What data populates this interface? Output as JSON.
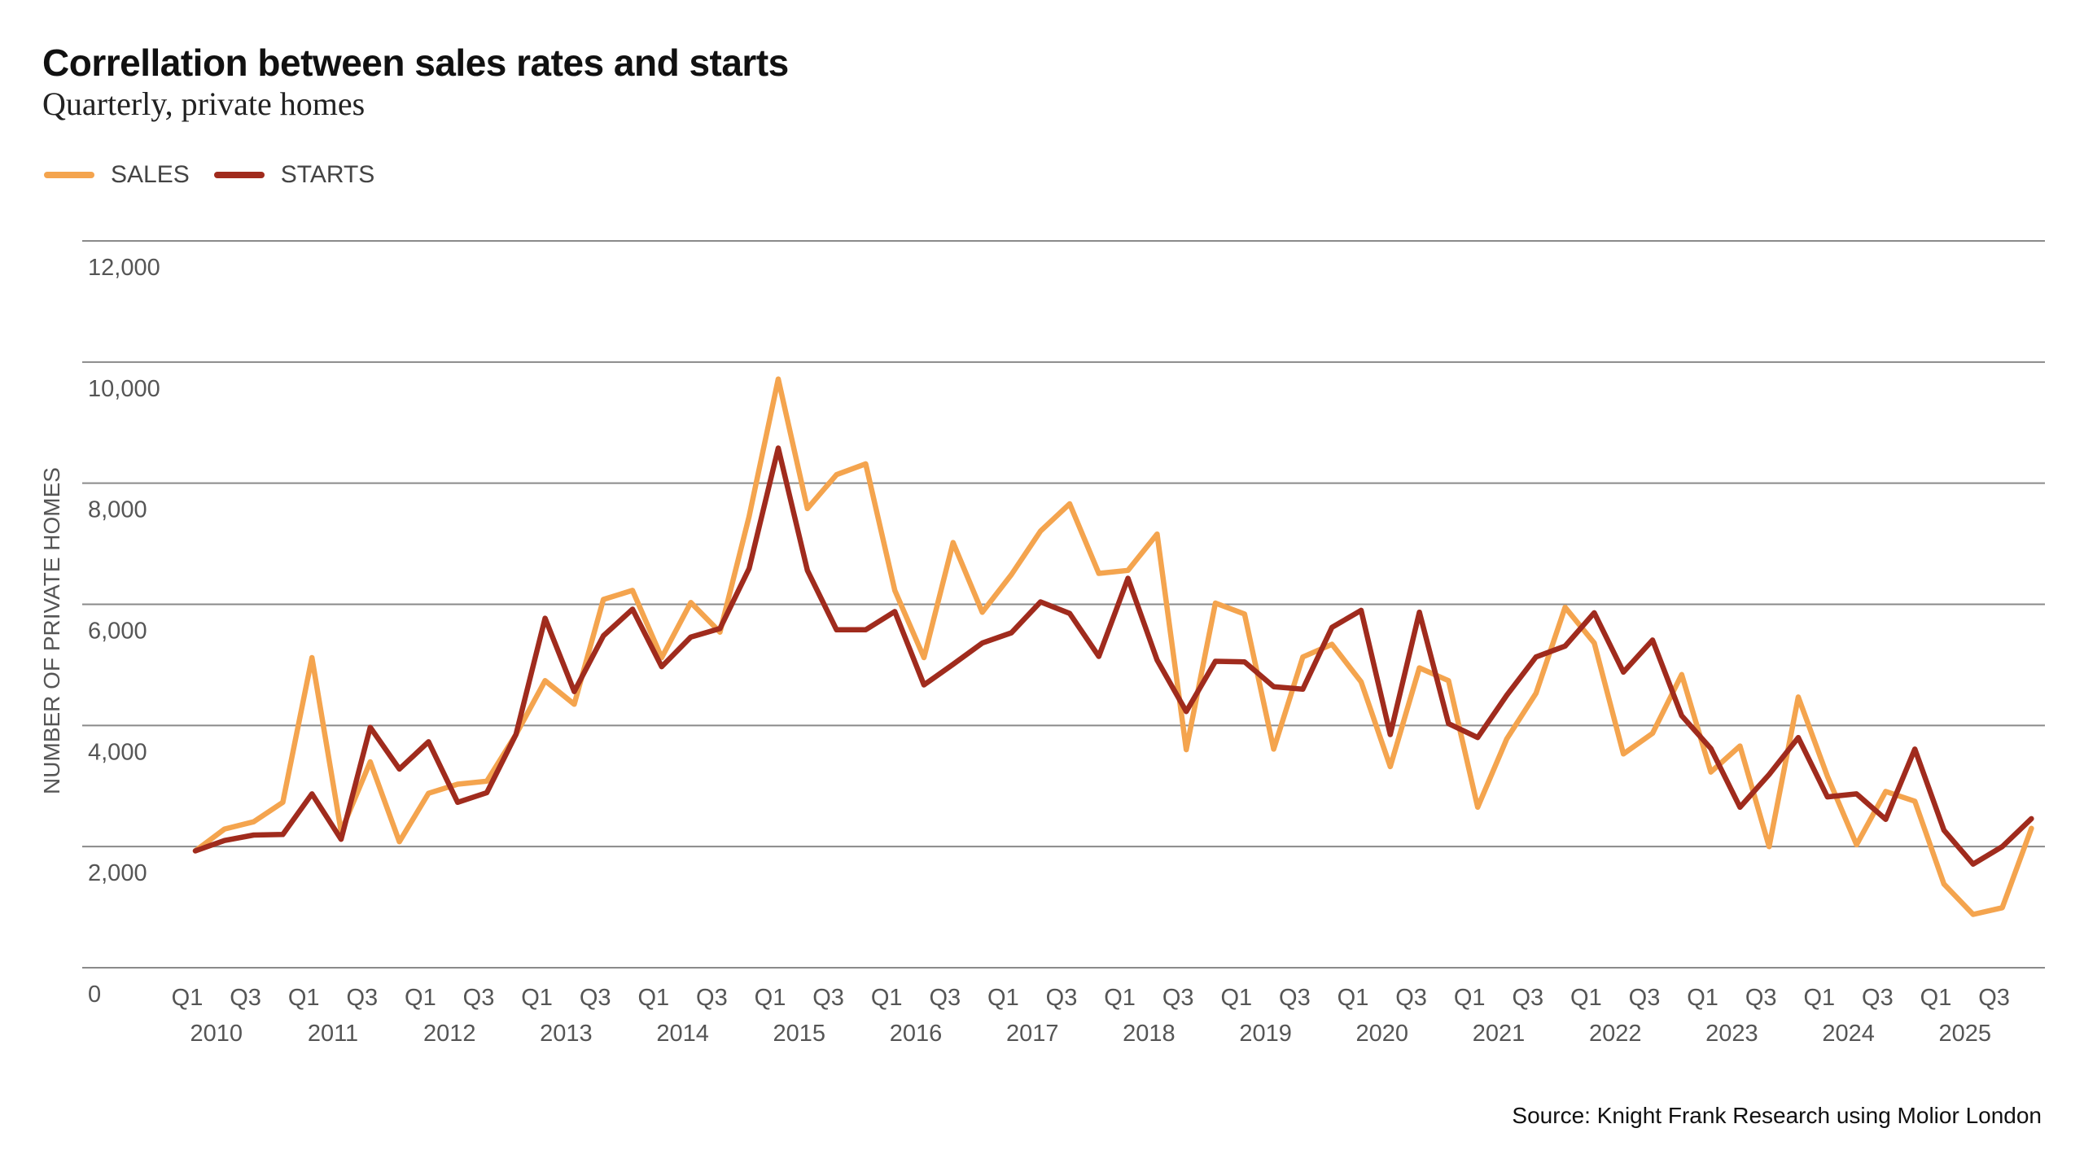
{
  "header": {
    "title": "Correllation between sales rates and starts",
    "subtitle": "Quarterly, private homes"
  },
  "source": "Source: Knight Frank Research using Molior London",
  "chart_data": {
    "type": "line",
    "title": "Correllation between sales rates and starts",
    "subtitle": "Quarterly, private homes",
    "xlabel": "",
    "ylabel": "NUMBER OF PRIVATE HOMES",
    "ylim": [
      0,
      12000
    ],
    "yticks": [
      "0",
      "2,000",
      "4,000",
      "6,000",
      "8,000",
      "10,000",
      "12,000"
    ],
    "grid": true,
    "legend_position": "top-left",
    "years": [
      "2010",
      "2011",
      "2012",
      "2013",
      "2014",
      "2015",
      "2016",
      "2017",
      "2018",
      "2019",
      "2020",
      "2021",
      "2022",
      "2023",
      "2024",
      "2025"
    ],
    "quarter_tick_labels": [
      "Q1",
      "Q3"
    ],
    "x": [
      "Q1 2010",
      "Q2 2010",
      "Q3 2010",
      "Q4 2010",
      "Q1 2011",
      "Q2 2011",
      "Q3 2011",
      "Q4 2011",
      "Q1 2012",
      "Q2 2012",
      "Q3 2012",
      "Q4 2012",
      "Q1 2013",
      "Q2 2013",
      "Q3 2013",
      "Q4 2013",
      "Q1 2014",
      "Q2 2014",
      "Q3 2014",
      "Q4 2014",
      "Q1 2015",
      "Q2 2015",
      "Q3 2015",
      "Q4 2015",
      "Q1 2016",
      "Q2 2016",
      "Q3 2016",
      "Q4 2016",
      "Q1 2017",
      "Q2 2017",
      "Q3 2017",
      "Q4 2017",
      "Q1 2018",
      "Q2 2018",
      "Q3 2018",
      "Q4 2018",
      "Q1 2019",
      "Q2 2019",
      "Q3 2019",
      "Q4 2019",
      "Q1 2020",
      "Q2 2020",
      "Q3 2020",
      "Q4 2020",
      "Q1 2021",
      "Q2 2021",
      "Q3 2021",
      "Q4 2021",
      "Q1 2022",
      "Q2 2022",
      "Q3 2022",
      "Q4 2022",
      "Q1 2023",
      "Q2 2023",
      "Q3 2023",
      "Q4 2023",
      "Q1 2024",
      "Q2 2024",
      "Q3 2024",
      "Q4 2024",
      "Q1 2025",
      "Q2 2025",
      "Q3 2025",
      "Q4 2025"
    ],
    "series": [
      {
        "name": "SALES",
        "color": "#F4A44E",
        "values": [
          1930,
          2290,
          2410,
          2730,
          5120,
          2250,
          3400,
          2080,
          2880,
          3030,
          3080,
          3850,
          4740,
          4350,
          6080,
          6230,
          5120,
          6030,
          5540,
          7450,
          9720,
          7580,
          8140,
          8320,
          6230,
          5120,
          7020,
          5870,
          6490,
          7210,
          7660,
          6510,
          6560,
          7160,
          3600,
          6020,
          5840,
          3610,
          5130,
          5340,
          4720,
          3320,
          4950,
          4740,
          2650,
          3780,
          4530,
          5950,
          5360,
          3530,
          3870,
          4840,
          3230,
          3660,
          2000,
          4470,
          3160,
          2030,
          2910,
          2750,
          1380,
          880,
          990,
          2300
        ]
      },
      {
        "name": "STARTS",
        "color": "#A02B1D",
        "values": [
          1930,
          2100,
          2190,
          2200,
          2870,
          2120,
          3970,
          3280,
          3730,
          2730,
          2890,
          3850,
          5770,
          4560,
          5480,
          5920,
          4970,
          5460,
          5600,
          6590,
          8580,
          6560,
          5580,
          5580,
          5880,
          4670,
          5010,
          5360,
          5530,
          6040,
          5850,
          5140,
          6430,
          5080,
          4230,
          5060,
          5050,
          4640,
          4600,
          5620,
          5900,
          3850,
          5870,
          4030,
          3800,
          4500,
          5130,
          5310,
          5860,
          4880,
          5410,
          4160,
          3620,
          2650,
          3190,
          3800,
          2820,
          2870,
          2450,
          3610,
          2270,
          1710,
          2000,
          2460
        ]
      }
    ]
  }
}
